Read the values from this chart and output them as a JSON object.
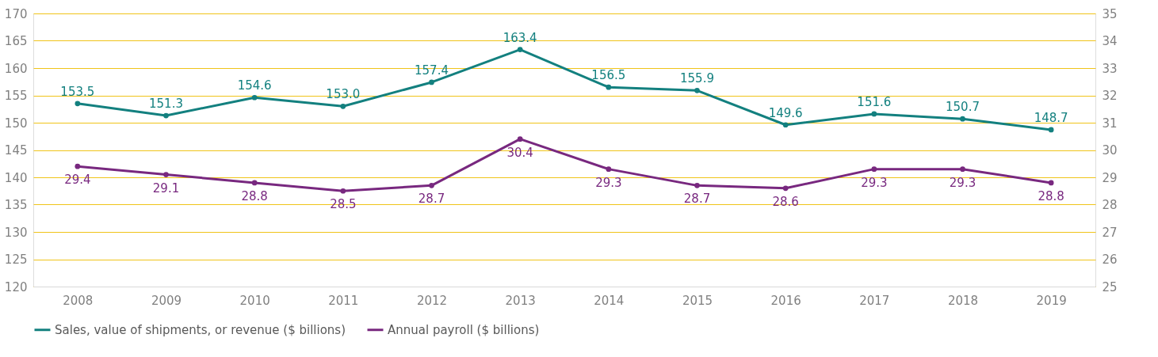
{
  "chart_data": {
    "type": "line",
    "categories": [
      "2008",
      "2009",
      "2010",
      "2011",
      "2012",
      "2013",
      "2014",
      "2015",
      "2016",
      "2017",
      "2018",
      "2019"
    ],
    "series": [
      {
        "name": "Sales, value of shipments, or revenue ($ billions)",
        "color": "#13807f",
        "values": [
          153.5,
          151.3,
          154.6,
          153.0,
          157.4,
          163.4,
          156.5,
          155.9,
          149.6,
          151.6,
          150.7,
          148.7
        ],
        "value_labels": [
          "153.5",
          "151.3",
          "154.6",
          "153.0",
          "157.4",
          "163.4",
          "156.5",
          "155.9",
          "149.6",
          "151.6",
          "150.7",
          "148.7"
        ]
      },
      {
        "name": "Annual payroll ($ billions)",
        "color": "#78287f",
        "axis": "y2",
        "values": [
          29.4,
          29.1,
          28.8,
          28.5,
          28.7,
          30.4,
          29.3,
          28.7,
          28.6,
          29.3,
          29.3,
          28.8
        ]
      }
    ],
    "ylim": [
      120,
      170
    ],
    "yticks": [
      120,
      125,
      130,
      135,
      140,
      145,
      150,
      155,
      160,
      165,
      170
    ],
    "y2lim": [
      25,
      35
    ],
    "y2ticks": [
      25,
      26,
      27,
      28,
      29,
      30,
      31,
      32,
      33,
      34,
      35
    ],
    "grid": "y",
    "legend": "bottom",
    "marker": "circle",
    "line_style": "solid",
    "data_labels": true
  }
}
